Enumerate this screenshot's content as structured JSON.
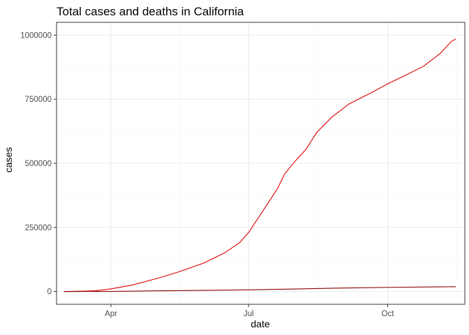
{
  "chart_data": {
    "type": "line",
    "title": "Total cases and deaths in California",
    "xlabel": "date",
    "ylabel": "cases",
    "x_range": [
      "2020-03-01",
      "2020-11-21"
    ],
    "xlim": [
      "2020-02-25",
      "2020-11-21"
    ],
    "ylim": [
      -50000,
      1050000
    ],
    "x_ticks": [
      {
        "date": "2020-04-01",
        "label": "Apr"
      },
      {
        "date": "2020-07-01",
        "label": "Jul"
      },
      {
        "date": "2020-10-01",
        "label": "Oct"
      }
    ],
    "y_ticks": [
      {
        "value": 0,
        "label": "0"
      },
      {
        "value": 250000,
        "label": "250000"
      },
      {
        "value": 500000,
        "label": "500000"
      },
      {
        "value": 750000,
        "label": "750000"
      },
      {
        "value": 1000000,
        "label": "1000000"
      }
    ],
    "grid": true,
    "series": [
      {
        "color": "#e00000",
        "points": [
          [
            "2020-03-01",
            0
          ],
          [
            "2020-03-15",
            1500
          ],
          [
            "2020-03-22",
            3000
          ],
          [
            "2020-04-01",
            10000
          ],
          [
            "2020-04-15",
            25000
          ],
          [
            "2020-05-01",
            50000
          ],
          [
            "2020-05-15",
            75000
          ],
          [
            "2020-06-01",
            110000
          ],
          [
            "2020-06-15",
            150000
          ],
          [
            "2020-06-25",
            190000
          ],
          [
            "2020-07-01",
            230000
          ],
          [
            "2020-07-10",
            310000
          ],
          [
            "2020-07-20",
            400000
          ],
          [
            "2020-07-25",
            460000
          ],
          [
            "2020-08-01",
            510000
          ],
          [
            "2020-08-08",
            555000
          ],
          [
            "2020-08-15",
            620000
          ],
          [
            "2020-08-25",
            680000
          ],
          [
            "2020-09-05",
            730000
          ],
          [
            "2020-09-20",
            775000
          ],
          [
            "2020-10-01",
            810000
          ],
          [
            "2020-10-15",
            850000
          ],
          [
            "2020-10-25",
            880000
          ],
          [
            "2020-11-05",
            930000
          ],
          [
            "2020-11-12",
            975000
          ],
          [
            "2020-11-15",
            985000
          ]
        ]
      },
      {
        "color": "#8b0000",
        "points": [
          [
            "2020-03-01",
            0
          ],
          [
            "2020-04-01",
            300
          ],
          [
            "2020-05-01",
            2500
          ],
          [
            "2020-06-01",
            4200
          ],
          [
            "2020-07-01",
            6300
          ],
          [
            "2020-08-01",
            9700
          ],
          [
            "2020-09-01",
            13500
          ],
          [
            "2020-10-01",
            16000
          ],
          [
            "2020-11-01",
            17800
          ],
          [
            "2020-11-15",
            18500
          ]
        ]
      }
    ]
  }
}
